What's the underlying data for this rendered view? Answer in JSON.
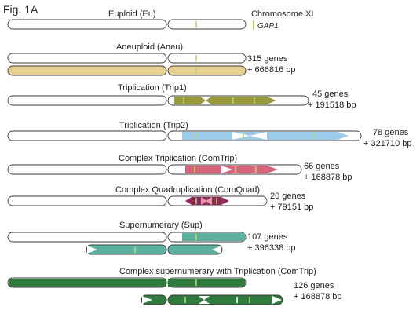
{
  "figure_label": "Fig. 1A",
  "colors": {
    "outline": "#3a3a3a",
    "chromosome_fill": "#ffffff",
    "gap1_marker": "#b7d36a",
    "inner_line": "#ffffff"
  },
  "legend": {
    "chromosome_label": "Chromosome XI",
    "gene_label": "GAP1"
  },
  "panels": [
    {
      "id": "eu",
      "title": "Euploid (Eu)",
      "color": "#ffffff",
      "genes": "",
      "bp": ""
    },
    {
      "id": "aneu",
      "title": "Aneuploid (Aneu)",
      "color": "#e6d08f",
      "genes": "315 genes",
      "bp": "+ 666816 bp"
    },
    {
      "id": "trip1",
      "title": "Triplication (Trip1)",
      "color": "#9a9a40",
      "genes": "45 genes",
      "bp": "+ 191518 bp"
    },
    {
      "id": "trip2",
      "title": "Triplication (Trip2)",
      "color": "#9ccbea",
      "genes": "78 genes",
      "bp": "+ 321710 bp"
    },
    {
      "id": "comtrip",
      "title": "Complex Triplication (ComTrip)",
      "color": "#d4657a",
      "genes": "66 genes",
      "bp": "+ 168878 bp"
    },
    {
      "id": "comquad",
      "title": "Complex Quadruplication (ComQuad)",
      "color": "#8e2b5a",
      "genes": "20 genes",
      "bp": "+ 79151 bp"
    },
    {
      "id": "sup",
      "title": "Supernumerary (Sup)",
      "color": "#5cb0a0",
      "genes": "107 genes",
      "bp": "+ 396338 bp"
    },
    {
      "id": "suptrip",
      "title": "Complex supernumerary with Triplication (ComTrip)",
      "color": "#2f7a3c",
      "genes": "126 genes",
      "bp": "+ 168878 bp"
    }
  ]
}
